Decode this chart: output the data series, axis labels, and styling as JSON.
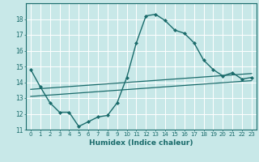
{
  "xlabel": "Humidex (Indice chaleur)",
  "bg_color": "#c8e8e8",
  "grid_color": "#ffffff",
  "line_color": "#1a6b6b",
  "xlim": [
    -0.5,
    23.5
  ],
  "ylim": [
    11,
    19
  ],
  "yticks": [
    11,
    12,
    13,
    14,
    15,
    16,
    17,
    18
  ],
  "xticks": [
    0,
    1,
    2,
    3,
    4,
    5,
    6,
    7,
    8,
    9,
    10,
    11,
    12,
    13,
    14,
    15,
    16,
    17,
    18,
    19,
    20,
    21,
    22,
    23
  ],
  "xtick_labels": [
    "0",
    "1",
    "2",
    "3",
    "4",
    "5",
    "6",
    "7",
    "8",
    "9",
    "10",
    "11",
    "12",
    "13",
    "14",
    "15",
    "16",
    "17",
    "18",
    "19",
    "20",
    "21",
    "22",
    "23"
  ],
  "series": [
    {
      "x": [
        0,
        1,
        2,
        3,
        4,
        5,
        6,
        7,
        8,
        9,
        10,
        11,
        12,
        13,
        14,
        15,
        16,
        17,
        18,
        19,
        20,
        21,
        22,
        23
      ],
      "y": [
        14.8,
        13.7,
        12.7,
        12.1,
        12.1,
        11.2,
        11.5,
        11.8,
        11.9,
        12.7,
        14.3,
        16.5,
        18.2,
        18.3,
        17.9,
        17.3,
        17.1,
        16.5,
        15.4,
        14.8,
        14.4,
        14.6,
        14.2,
        14.3
      ],
      "marker": "D",
      "markersize": 2.0,
      "linewidth": 1.0
    },
    {
      "x": [
        0,
        23
      ],
      "y": [
        13.55,
        14.55
      ],
      "marker": null,
      "linewidth": 0.9
    },
    {
      "x": [
        0,
        23
      ],
      "y": [
        13.1,
        14.1
      ],
      "marker": null,
      "linewidth": 0.9
    }
  ]
}
